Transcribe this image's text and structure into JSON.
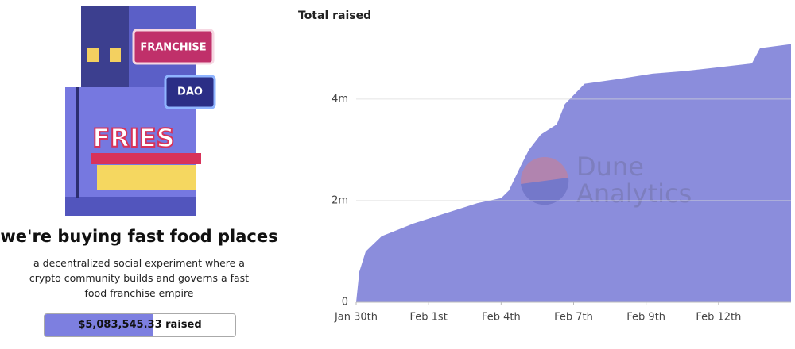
{
  "illustration": {
    "signs": [
      "FRANCHISE",
      "DAO",
      "FRIES"
    ]
  },
  "heading": "we're buying fast food places",
  "description": "a decentralized social experiment where a crypto community builds and governs a fast food franchise empire",
  "progress": {
    "label": "$5,083,545.33 raised",
    "percent": 57
  },
  "chart_data": {
    "type": "area",
    "title": "Total raised",
    "color": "#8b8ddc",
    "watermark": [
      "Dune",
      "Analytics"
    ],
    "x": [
      0,
      0.11,
      0.33,
      0.88,
      1.98,
      3.08,
      4.18,
      5.0,
      5.27,
      5.69,
      5.96,
      6.37,
      6.92,
      7.2,
      7.88,
      9.12,
      10.22,
      11.32,
      12.42,
      13.65,
      13.93,
      15
    ],
    "series": [
      {
        "name": "Total raised",
        "color": "#8b8ddc",
        "values": [
          0,
          600000,
          1000000,
          1300000,
          1550000,
          1750000,
          1950000,
          2050000,
          2200000,
          2700000,
          3000000,
          3300000,
          3500000,
          3900000,
          4300000,
          4400000,
          4500000,
          4550000,
          4620000,
          4700000,
          5000000,
          5080000
        ]
      }
    ],
    "xlim": [
      0,
      15
    ],
    "xticks": [
      {
        "value": 0,
        "label": "Jan 30th"
      },
      {
        "value": 2.5,
        "label": "Feb 1st"
      },
      {
        "value": 5,
        "label": "Feb 4th"
      },
      {
        "value": 7.5,
        "label": "Feb 7th"
      },
      {
        "value": 10,
        "label": "Feb 9th"
      },
      {
        "value": 12.5,
        "label": "Feb 12th"
      }
    ],
    "ylim": [
      0,
      5200000
    ],
    "yticks": [
      0,
      {
        "value": 2000000,
        "label": "2m"
      },
      {
        "value": 4000000,
        "label": "4m"
      }
    ],
    "grid": true
  }
}
